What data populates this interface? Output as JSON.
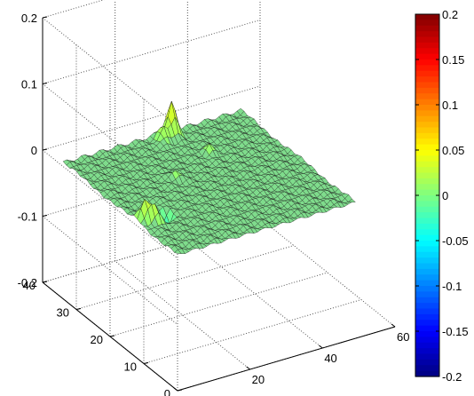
{
  "chart_data": {
    "type": "surface",
    "x_ticks": [
      "0",
      "20",
      "40",
      "60"
    ],
    "y_ticks": [
      "0",
      "10",
      "20",
      "30",
      "40"
    ],
    "z_ticks": [
      "-0.2",
      "-0.1",
      "0",
      "0.1",
      "0.2"
    ],
    "xlim": [
      0,
      60
    ],
    "ylim": [
      0,
      40
    ],
    "zlim": [
      -0.2,
      0.2
    ],
    "grid": true,
    "surface": {
      "x_range": [
        1,
        50
      ],
      "y_range": [
        1,
        35
      ],
      "base_z": 0,
      "face_color": "#7fdc8c",
      "edge_color": "#1a1a1a",
      "peaks": [
        {
          "x": 30,
          "y": 34,
          "z": 0.05
        },
        {
          "x": 27,
          "y": 33,
          "z": 0.02
        },
        {
          "x": 3,
          "y": 13,
          "z": 0.03
        },
        {
          "x": 5,
          "y": 12,
          "z": 0.02
        },
        {
          "x": 9,
          "y": 13,
          "z": -0.03
        },
        {
          "x": 20,
          "y": 22,
          "z": 0.012
        },
        {
          "x": 33,
          "y": 26,
          "z": 0.01
        }
      ]
    },
    "colorbar": {
      "ticks": [
        "0.2",
        "0.15",
        "0.1",
        "0.05",
        "0",
        "-0.05",
        "-0.1",
        "-0.15",
        "-0.2"
      ],
      "range": [
        -0.2,
        0.2
      ],
      "colormap": "jet"
    }
  }
}
